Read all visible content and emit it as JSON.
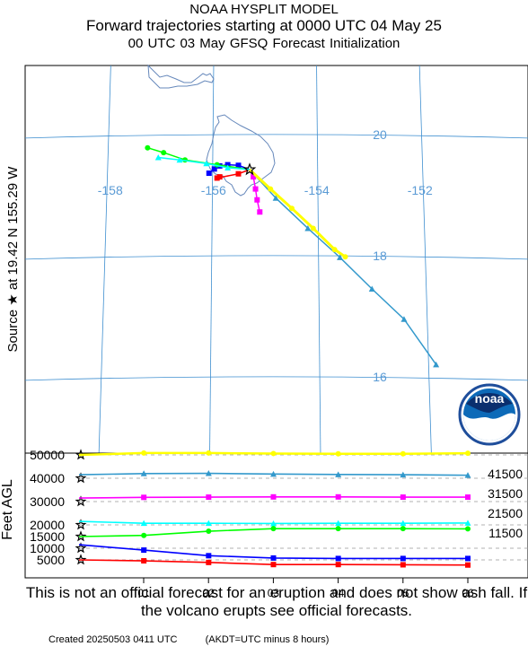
{
  "header": {
    "line1": "NOAA HYSPLIT MODEL",
    "line2": "Forward trajectories starting at 0000 UTC 04 May 25",
    "line3": "00 UTC 03 May    GFSQ  Forecast Initialization"
  },
  "source_label": "Source ★ at   19.42 N  155.29 W",
  "footer": {
    "disclaimer": "This is not an official forecast for an eruption and does not show ash fall. If the volcano erupts see official forecasts.",
    "created": "Created 20250503 0411 UTC",
    "timezone_note": "(AKDT=UTC minus 8 hours)"
  },
  "logo": {
    "text": "noaa"
  },
  "colors": {
    "red": "#ff0000",
    "blue": "#0000ff",
    "green": "#00ff00",
    "cyan": "#00ffff",
    "magenta": "#ff00ff",
    "steelblue": "#3399cc",
    "yellow": "#ffff00",
    "grid": "#3f8fd0",
    "coast": "#6688bb",
    "label": "#5b9bd5"
  },
  "chart_data": [
    {
      "type": "line",
      "title": "Forward trajectories starting at 0000 UTC 04 May 25",
      "subtitle": "00 UTC 03 May    GFSQ  Forecast Initialization",
      "source": {
        "lat": 19.42,
        "lon": -155.29
      },
      "lon_ticks": [
        -158,
        -156,
        -154,
        -152
      ],
      "lat_ticks": [
        20,
        18,
        16
      ],
      "grid": true,
      "series": [
        {
          "name": "5000",
          "color": "red",
          "points": [
            [
              -155.29,
              19.42
            ],
            [
              -155.5,
              19.35
            ],
            [
              -155.9,
              19.28
            ],
            [
              -155.85,
              19.3
            ]
          ]
        },
        {
          "name": "11500",
          "color": "blue",
          "points": [
            [
              -155.29,
              19.42
            ],
            [
              -155.5,
              19.49
            ],
            [
              -155.7,
              19.5
            ],
            [
              -155.85,
              19.48
            ],
            [
              -155.95,
              19.43
            ],
            [
              -156.05,
              19.36
            ]
          ]
        },
        {
          "name": "15000",
          "color": "green",
          "points": [
            [
              -155.29,
              19.42
            ],
            [
              -155.9,
              19.5
            ],
            [
              -156.5,
              19.58
            ],
            [
              -156.9,
              19.7
            ],
            [
              -157.2,
              19.78
            ]
          ]
        },
        {
          "name": "21500",
          "color": "cyan",
          "points": [
            [
              -155.29,
              19.42
            ],
            [
              -155.7,
              19.45
            ],
            [
              -156.1,
              19.52
            ],
            [
              -156.6,
              19.58
            ],
            [
              -157.0,
              19.62
            ]
          ]
        },
        {
          "name": "31500",
          "color": "magenta",
          "points": [
            [
              -155.29,
              19.42
            ],
            [
              -155.22,
              19.3
            ],
            [
              -155.18,
              19.1
            ],
            [
              -155.15,
              18.92
            ],
            [
              -155.1,
              18.72
            ]
          ]
        },
        {
          "name": "41500",
          "color": "steelblue",
          "points": [
            [
              -155.29,
              19.42
            ],
            [
              -154.8,
              18.95
            ],
            [
              -154.2,
              18.45
            ],
            [
              -153.6,
              17.97
            ],
            [
              -153.0,
              17.45
            ],
            [
              -152.4,
              16.95
            ],
            [
              -151.8,
              16.2
            ]
          ]
        },
        {
          "name": "50000",
          "color": "yellow",
          "points": [
            [
              -155.29,
              19.42
            ],
            [
              -154.9,
              19.1
            ],
            [
              -154.5,
              18.78
            ],
            [
              -154.1,
              18.45
            ],
            [
              -153.7,
              18.1
            ],
            [
              -153.5,
              17.98
            ]
          ]
        }
      ]
    },
    {
      "type": "line",
      "ylabel": "Feet AGL",
      "x_ticks": [
        "01",
        "02",
        "03",
        "04",
        "05",
        "06"
      ],
      "y_ticks": [
        5000,
        10000,
        15000,
        20000,
        30000,
        40000,
        50000
      ],
      "right_labels": [
        "41500",
        "31500",
        "21500",
        "11500"
      ],
      "x_hours": [
        0,
        12,
        24,
        36,
        48,
        60,
        72
      ],
      "series": [
        {
          "name": "50000",
          "color": "yellow",
          "values": [
            50000,
            50800,
            50800,
            50600,
            50500,
            50500,
            50700
          ]
        },
        {
          "name": "41500",
          "color": "steelblue",
          "values": [
            41500,
            42000,
            42100,
            41800,
            41600,
            41500,
            41300
          ]
        },
        {
          "name": "31500",
          "color": "magenta",
          "values": [
            31500,
            31800,
            31900,
            32000,
            32000,
            31900,
            31900
          ]
        },
        {
          "name": "21500",
          "color": "cyan",
          "values": [
            21500,
            20700,
            20700,
            20600,
            20700,
            20700,
            20800
          ]
        },
        {
          "name": "15000",
          "color": "green",
          "values": [
            15000,
            15500,
            17300,
            18400,
            18400,
            18400,
            18300
          ]
        },
        {
          "name": "11500",
          "color": "blue",
          "values": [
            11500,
            9200,
            6800,
            5800,
            5600,
            5600,
            5600
          ]
        },
        {
          "name": "5000",
          "color": "red",
          "values": [
            5000,
            4600,
            3900,
            3000,
            3000,
            2900,
            2800
          ]
        }
      ]
    }
  ]
}
